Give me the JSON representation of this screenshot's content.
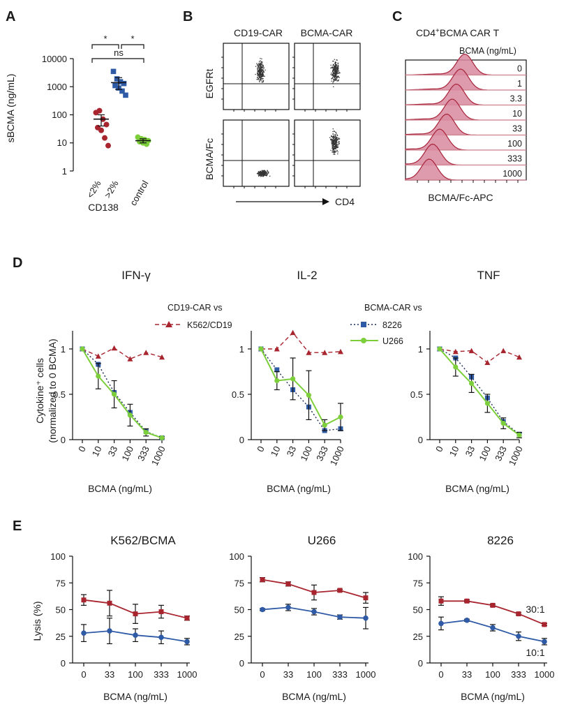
{
  "colors": {
    "red": "#a8242e",
    "blue": "#2f5aa5",
    "green": "#7ccf3a",
    "black": "#1a1a1a",
    "hist_fill": "#d98aa0",
    "hist_line": "#a8243a",
    "dot": "#333333"
  },
  "panels": {
    "A": {
      "letter": "A",
      "ylabel": "sBCMA (ng/mL)",
      "yticks": [
        "10000",
        "1000",
        "100",
        "10",
        "1"
      ],
      "xticks": [
        "<2%",
        ">2%",
        "control"
      ],
      "xgroup_label": "CD138",
      "sig": [
        "*",
        "*",
        "ns"
      ]
    },
    "B": {
      "letter": "B",
      "col_titles": [
        "CD19-CAR",
        "BCMA-CAR"
      ],
      "row_labels": [
        "EGFRt",
        "BCMA/Fc"
      ],
      "xlabel": "CD4"
    },
    "C": {
      "letter": "C",
      "title_prefix": "CD4",
      "title_sup": "+",
      "title_suffix": "BCMA CAR T",
      "legend_title": "BCMA (ng/mL)",
      "levels": [
        "0",
        "1",
        "3.3",
        "10",
        "33",
        "100",
        "333",
        "1000"
      ],
      "xlabel": "BCMA/Fc-APC"
    },
    "D": {
      "letter": "D",
      "ylabel_line1": "Cytokine⁺ cells",
      "ylabel_line2": "(normalized to 0 BCMA)",
      "xlabel": "BCMA (ng/mL)",
      "legend": {
        "group1_title": "CD19-CAR vs",
        "group2_title": "BCMA-CAR vs",
        "s1": "K562/CD19",
        "s2": "8226",
        "s3": "U266"
      }
    },
    "E": {
      "letter": "E",
      "ylabel": "Lysis (%)",
      "xlabel": "BCMA (ng/mL)",
      "ratios": [
        "30:1",
        "10:1"
      ]
    }
  },
  "chart_data": [
    {
      "panel": "A",
      "type": "scatter",
      "title": "",
      "ylabel": "sBCMA (ng/mL)",
      "yscale": "log",
      "ylim": [
        1,
        10000
      ],
      "categories": [
        "<2%",
        ">2%",
        "control"
      ],
      "series": [
        {
          "name": "<2%",
          "color": "#a8242e",
          "marker": "circle",
          "values": [
            120,
            140,
            70,
            45,
            35,
            28,
            15,
            8
          ],
          "mean": 70,
          "err": [
            40,
            100
          ]
        },
        {
          "name": ">2%",
          "color": "#2f5aa5",
          "marker": "square",
          "values": [
            3500,
            1900,
            1500,
            1300,
            1100,
            900,
            700,
            500
          ],
          "mean": 1400,
          "err": [
            800,
            2100
          ]
        },
        {
          "name": "control",
          "color": "#7ccf3a",
          "marker": "circle",
          "values": [
            16,
            14,
            13,
            12,
            11,
            10,
            9
          ],
          "mean": 12,
          "err": [
            10,
            14
          ]
        }
      ]
    },
    {
      "panel": "D",
      "type": "line",
      "title": "IFN-γ",
      "xlabel": "BCMA (ng/mL)",
      "ylabel": "Cytokine⁺ cells (normalized to 0 BCMA)",
      "x": [
        "0",
        "10",
        "33",
        "100",
        "333",
        "1000"
      ],
      "ylim": [
        0,
        1.2
      ],
      "yticks": [
        "0",
        "0.5",
        "1"
      ],
      "series": [
        {
          "name": "K562/CD19",
          "values": [
            1,
            0.92,
            1.01,
            0.89,
            0.96,
            0.91
          ],
          "err": [
            0,
            0,
            0,
            0,
            0,
            0
          ]
        },
        {
          "name": "8226",
          "values": [
            1,
            0.83,
            0.52,
            0.3,
            0.09,
            0.02
          ],
          "err": [
            0,
            0,
            0,
            0,
            0,
            0
          ]
        },
        {
          "name": "U266",
          "values": [
            1,
            0.7,
            0.5,
            0.27,
            0.08,
            0.02
          ],
          "err": [
            0,
            0.14,
            0.15,
            0.12,
            0.04,
            0.01
          ]
        }
      ]
    },
    {
      "panel": "D",
      "type": "line",
      "title": "IL-2",
      "xlabel": "BCMA (ng/mL)",
      "x": [
        "0",
        "10",
        "33",
        "100",
        "333",
        "1000"
      ],
      "ylim": [
        0,
        1.2
      ],
      "yticks": [
        "0",
        "0.5",
        "1"
      ],
      "series": [
        {
          "name": "K562/CD19",
          "values": [
            1,
            1.0,
            1.18,
            0.96,
            0.96,
            0.97
          ],
          "err": [
            0,
            0,
            0,
            0,
            0,
            0
          ]
        },
        {
          "name": "8226",
          "values": [
            1,
            0.77,
            0.55,
            0.36,
            0.1,
            0.12
          ],
          "err": [
            0,
            0,
            0,
            0,
            0,
            0
          ]
        },
        {
          "name": "U266",
          "values": [
            1,
            0.65,
            0.67,
            0.49,
            0.16,
            0.25
          ],
          "err": [
            0,
            0.1,
            0.23,
            0.27,
            0.06,
            0.15
          ]
        }
      ]
    },
    {
      "panel": "D",
      "type": "line",
      "title": "TNF",
      "xlabel": "BCMA (ng/mL)",
      "x": [
        "0",
        "10",
        "33",
        "100",
        "333",
        "1000"
      ],
      "ylim": [
        0,
        1.2
      ],
      "yticks": [
        "0",
        "0.5",
        "1"
      ],
      "series": [
        {
          "name": "K562/CD19",
          "values": [
            1,
            0.97,
            0.98,
            0.85,
            0.98,
            0.91
          ],
          "err": [
            0,
            0,
            0,
            0,
            0,
            0
          ]
        },
        {
          "name": "8226",
          "values": [
            1,
            0.9,
            0.69,
            0.46,
            0.2,
            0.06
          ],
          "err": [
            0,
            0,
            0,
            0,
            0,
            0
          ]
        },
        {
          "name": "U266",
          "values": [
            1,
            0.8,
            0.62,
            0.4,
            0.18,
            0.05
          ],
          "err": [
            0,
            0.1,
            0.1,
            0.1,
            0.06,
            0.03
          ]
        }
      ]
    },
    {
      "panel": "E",
      "type": "line",
      "title": "K562/BCMA",
      "xlabel": "BCMA (ng/mL)",
      "ylabel": "Lysis (%)",
      "x": [
        "0",
        "33",
        "100",
        "333",
        "1000"
      ],
      "ylim": [
        0,
        100
      ],
      "yticks": [
        "0",
        "25",
        "50",
        "75",
        "100"
      ],
      "series": [
        {
          "name": "30:1",
          "values": [
            59,
            56,
            46,
            48,
            42
          ],
          "err": [
            5,
            12,
            9,
            6,
            2
          ]
        },
        {
          "name": "10:1",
          "values": [
            28,
            30,
            26,
            24,
            20
          ],
          "err": [
            8,
            12,
            6,
            6,
            3
          ]
        }
      ]
    },
    {
      "panel": "E",
      "type": "line",
      "title": "U266",
      "xlabel": "BCMA (ng/mL)",
      "x": [
        "0",
        "33",
        "100",
        "333",
        "1000"
      ],
      "ylim": [
        0,
        100
      ],
      "yticks": [
        "0",
        "25",
        "50",
        "75",
        "100"
      ],
      "series": [
        {
          "name": "30:1",
          "values": [
            78,
            74,
            66,
            68,
            61
          ],
          "err": [
            2,
            2,
            7,
            1,
            5
          ]
        },
        {
          "name": "10:1",
          "values": [
            50,
            52,
            48,
            43,
            42
          ],
          "err": [
            1,
            3,
            3,
            2,
            10
          ]
        }
      ]
    },
    {
      "panel": "E",
      "type": "line",
      "title": "8226",
      "xlabel": "BCMA (ng/mL)",
      "x": [
        "0",
        "33",
        "100",
        "333",
        "1000"
      ],
      "ylim": [
        0,
        100
      ],
      "yticks": [
        "0",
        "25",
        "50",
        "75",
        "100"
      ],
      "series": [
        {
          "name": "30:1",
          "values": [
            58,
            58,
            54,
            46,
            36
          ],
          "err": [
            4,
            1,
            1,
            1,
            1
          ]
        },
        {
          "name": "10:1",
          "values": [
            37,
            40,
            33,
            25,
            20
          ],
          "err": [
            6,
            1,
            3,
            4,
            3
          ]
        }
      ]
    }
  ]
}
